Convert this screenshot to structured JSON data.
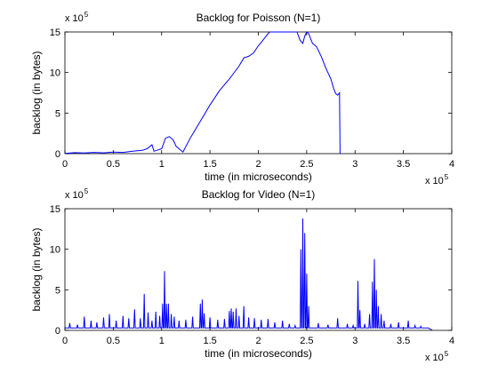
{
  "chart_data": [
    {
      "type": "line",
      "title": "Backlog for Poisson (N=1)",
      "xlabel": "time (in microseconds)",
      "ylabel": "backlog (in bytes)",
      "xlim": [
        0,
        400000
      ],
      "ylim": [
        0,
        1500000
      ],
      "x_tick_labels": [
        "0",
        "0.5",
        "1",
        "1.5",
        "2",
        "2.5",
        "3",
        "3.5",
        "4"
      ],
      "y_tick_labels": [
        "0",
        "5",
        "10",
        "15"
      ],
      "x_multiplier": "x 10",
      "x_multiplier_exp": "5",
      "y_multiplier": "x 10",
      "y_multiplier_exp": "5",
      "grid": false,
      "color": "#0000ff",
      "series": [
        {
          "x": [
            0,
            10000,
            20000,
            30000,
            40000,
            50000,
            60000,
            70000,
            80000,
            85000,
            90000,
            92000,
            95000,
            100000,
            104000,
            108000,
            112000,
            115000,
            118000,
            122000,
            130000,
            140000,
            150000,
            160000,
            170000,
            180000,
            185000,
            190000,
            195000,
            200000,
            205000,
            210000,
            212000,
            220000,
            230000,
            240000,
            243000,
            246000,
            248000,
            250000,
            252000,
            254000,
            256000,
            260000,
            265000,
            270000,
            275000,
            278000,
            280000,
            282000,
            284000,
            284500,
            285000
          ],
          "y": [
            3000,
            12000,
            8000,
            15000,
            10000,
            20000,
            15000,
            30000,
            40000,
            60000,
            110000,
            30000,
            40000,
            60000,
            190000,
            210000,
            170000,
            90000,
            60000,
            20000,
            200000,
            400000,
            600000,
            780000,
            920000,
            1080000,
            1180000,
            1200000,
            1240000,
            1330000,
            1400000,
            1480000,
            1500000,
            1500000,
            1500000,
            1500000,
            1400000,
            1360000,
            1450000,
            1500000,
            1480000,
            1420000,
            1360000,
            1320000,
            1200000,
            1050000,
            920000,
            800000,
            740000,
            720000,
            750000,
            0,
            0
          ]
        }
      ]
    },
    {
      "type": "line",
      "title": "Backlog for Video (N=1)",
      "xlabel": "time (in microseconds)",
      "ylabel": "backlog (in bytes)",
      "xlim": [
        0,
        400000
      ],
      "ylim": [
        0,
        1500000
      ],
      "x_tick_labels": [
        "0",
        "0.5",
        "1",
        "1.5",
        "2",
        "2.5",
        "3",
        "3.5",
        "4"
      ],
      "y_tick_labels": [
        "0",
        "5",
        "10",
        "15"
      ],
      "x_multiplier": "x 10",
      "x_multiplier_exp": "5",
      "y_multiplier": "x 10",
      "y_multiplier_exp": "5",
      "grid": false,
      "color": "#0000ff",
      "x_end": 380000,
      "baseline_level": 30000,
      "spikes": [
        [
          5000,
          90000
        ],
        [
          13000,
          70000
        ],
        [
          20000,
          170000
        ],
        [
          27000,
          120000
        ],
        [
          33000,
          100000
        ],
        [
          40000,
          160000
        ],
        [
          46000,
          200000
        ],
        [
          53000,
          120000
        ],
        [
          60000,
          180000
        ],
        [
          66000,
          150000
        ],
        [
          72000,
          260000
        ],
        [
          78000,
          150000
        ],
        [
          82000,
          450000
        ],
        [
          86000,
          220000
        ],
        [
          90000,
          120000
        ],
        [
          94000,
          230000
        ],
        [
          98000,
          180000
        ],
        [
          101000,
          330000
        ],
        [
          103000,
          730000
        ],
        [
          105000,
          330000
        ],
        [
          107000,
          330000
        ],
        [
          110000,
          200000
        ],
        [
          113000,
          170000
        ],
        [
          118000,
          120000
        ],
        [
          125000,
          130000
        ],
        [
          132000,
          170000
        ],
        [
          140000,
          330000
        ],
        [
          142000,
          380000
        ],
        [
          144000,
          210000
        ],
        [
          150000,
          160000
        ],
        [
          158000,
          130000
        ],
        [
          165000,
          140000
        ],
        [
          170000,
          240000
        ],
        [
          172000,
          270000
        ],
        [
          174000,
          230000
        ],
        [
          177000,
          270000
        ],
        [
          180000,
          180000
        ],
        [
          185000,
          300000
        ],
        [
          190000,
          160000
        ],
        [
          196000,
          150000
        ],
        [
          203000,
          130000
        ],
        [
          210000,
          140000
        ],
        [
          217000,
          100000
        ],
        [
          225000,
          120000
        ],
        [
          232000,
          80000
        ],
        [
          238000,
          60000
        ],
        [
          244000,
          1000000
        ],
        [
          246000,
          1380000
        ],
        [
          248000,
          1200000
        ],
        [
          250000,
          700000
        ],
        [
          252000,
          300000
        ],
        [
          262000,
          90000
        ],
        [
          272000,
          70000
        ],
        [
          282000,
          150000
        ],
        [
          292000,
          80000
        ],
        [
          298000,
          60000
        ],
        [
          303000,
          610000
        ],
        [
          305000,
          250000
        ],
        [
          310000,
          80000
        ],
        [
          315000,
          200000
        ],
        [
          318000,
          600000
        ],
        [
          320000,
          880000
        ],
        [
          322000,
          500000
        ],
        [
          324000,
          300000
        ],
        [
          327000,
          200000
        ],
        [
          330000,
          120000
        ],
        [
          337000,
          80000
        ],
        [
          345000,
          100000
        ],
        [
          355000,
          120000
        ],
        [
          362000,
          60000
        ],
        [
          368000,
          50000
        ],
        [
          375000,
          30000
        ]
      ]
    }
  ]
}
